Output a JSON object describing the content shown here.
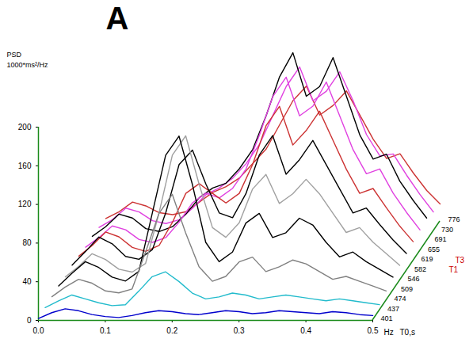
{
  "chart_data": {
    "type": "waterfall",
    "title": "A",
    "ylabel": "PSD",
    "ylabel_unit": "1000*ms²/Hz",
    "xlabel": "Hz",
    "zlabel": "T0,s",
    "annotations": [
      {
        "text": "T3",
        "color": "#cc0000"
      },
      {
        "text": "T1",
        "color": "#cc0000"
      }
    ],
    "x": [
      0,
      0.02,
      0.04,
      0.06,
      0.08,
      0.1,
      0.12,
      0.14,
      0.16,
      0.18,
      0.2,
      0.22,
      0.24,
      0.26,
      0.28,
      0.3,
      0.32,
      0.34,
      0.36,
      0.38,
      0.4,
      0.42,
      0.44,
      0.46,
      0.48,
      0.5
    ],
    "xlim": [
      0,
      0.5
    ],
    "xticks": [
      {
        "value": 0,
        "label": "0.0"
      },
      0.1,
      0.2,
      0.3,
      0.4,
      0.5
    ],
    "ylim": [
      0,
      200
    ],
    "yticks": [
      0,
      40,
      80,
      120,
      160,
      200
    ],
    "series": [
      {
        "t0": 401,
        "color": "#0000cc",
        "values": [
          2,
          8,
          12,
          10,
          6,
          4,
          3,
          5,
          8,
          10,
          9,
          7,
          6,
          8,
          10,
          9,
          7,
          8,
          10,
          9,
          8,
          7,
          9,
          8,
          6,
          5
        ]
      },
      {
        "t0": 437,
        "color": "#22bbcc",
        "values": [
          3,
          10,
          16,
          12,
          8,
          5,
          6,
          20,
          35,
          40,
          30,
          18,
          12,
          14,
          18,
          16,
          12,
          14,
          16,
          14,
          12,
          10,
          12,
          10,
          8,
          6
        ]
      },
      {
        "t0": 474,
        "color": "#808080",
        "values": [
          4,
          14,
          22,
          18,
          10,
          8,
          12,
          50,
          90,
          110,
          70,
          35,
          20,
          25,
          40,
          45,
          30,
          35,
          42,
          38,
          30,
          22,
          25,
          20,
          15,
          10
        ]
      },
      {
        "t0": 509,
        "color": "#000000",
        "values": [
          5,
          18,
          30,
          24,
          14,
          10,
          20,
          80,
          140,
          160,
          110,
          50,
          30,
          40,
          70,
          80,
          55,
          60,
          75,
          68,
          50,
          35,
          40,
          30,
          22,
          14
        ]
      },
      {
        "t0": 546,
        "color": "#a0a0a0",
        "values": [
          4,
          15,
          28,
          22,
          12,
          9,
          18,
          70,
          130,
          150,
          100,
          55,
          45,
          60,
          95,
          110,
          80,
          90,
          105,
          90,
          70,
          50,
          55,
          40,
          28,
          16
        ]
      },
      {
        "t0": 582,
        "color": "#000000",
        "values": [
          6,
          20,
          35,
          28,
          15,
          12,
          22,
          60,
          110,
          125,
          90,
          60,
          55,
          80,
          120,
          140,
          100,
          115,
          135,
          110,
          85,
          60,
          65,
          48,
          32,
          18
        ]
      },
      {
        "t0": 619,
        "color": "#cc3333",
        "values": [
          5,
          16,
          30,
          25,
          14,
          10,
          16,
          40,
          70,
          80,
          70,
          60,
          70,
          100,
          140,
          160,
          120,
          135,
          155,
          125,
          95,
          70,
          75,
          55,
          36,
          20
        ]
      },
      {
        "t0": 655,
        "color": "#e040e0",
        "values": [
          4,
          14,
          26,
          22,
          12,
          9,
          14,
          30,
          50,
          60,
          55,
          65,
          85,
          120,
          160,
          180,
          140,
          150,
          175,
          140,
          105,
          80,
          85,
          60,
          40,
          22
        ]
      },
      {
        "t0": 691,
        "color": "#000000",
        "values": [
          5,
          15,
          28,
          24,
          13,
          10,
          15,
          28,
          45,
          55,
          60,
          75,
          95,
          130,
          170,
          195,
          150,
          160,
          190,
          150,
          110,
          85,
          90,
          62,
          42,
          24
        ]
      },
      {
        "t0": 730,
        "color": "#e040e0",
        "values": [
          4,
          12,
          24,
          20,
          11,
          8,
          12,
          24,
          38,
          45,
          55,
          70,
          90,
          120,
          150,
          170,
          135,
          145,
          165,
          135,
          100,
          78,
          80,
          58,
          38,
          20
        ]
      },
      {
        "t0": 776,
        "color": "#cc3333",
        "values": [
          3,
          10,
          20,
          16,
          9,
          7,
          10,
          20,
          30,
          36,
          45,
          60,
          75,
          100,
          125,
          140,
          110,
          120,
          135,
          110,
          85,
          65,
          70,
          50,
          32,
          18
        ]
      }
    ]
  }
}
